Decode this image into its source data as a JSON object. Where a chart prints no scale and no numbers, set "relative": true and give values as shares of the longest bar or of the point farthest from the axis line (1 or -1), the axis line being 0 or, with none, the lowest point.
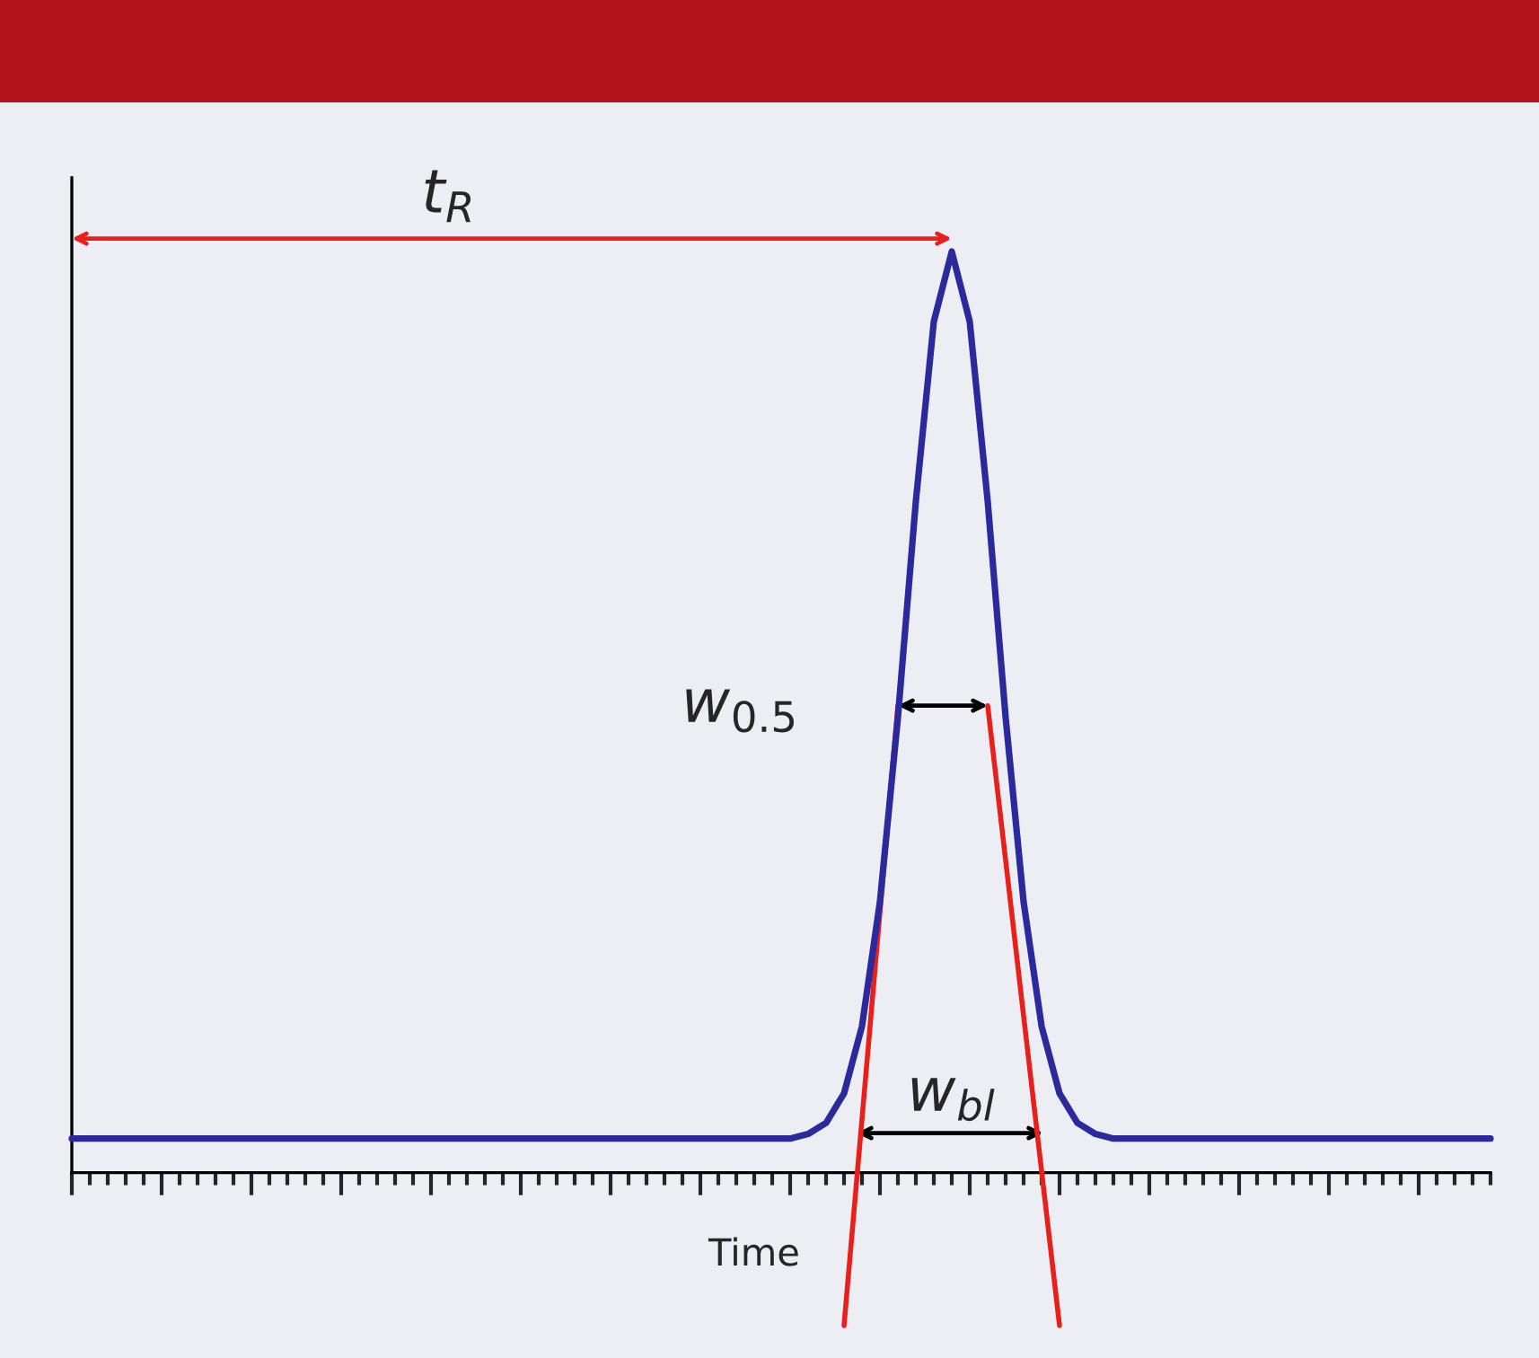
{
  "chart_data": {
    "type": "line",
    "relative": true,
    "categories": [
      null,
      null,
      null,
      null,
      null,
      null,
      null,
      null,
      null,
      null,
      null,
      null,
      null,
      null,
      null,
      null,
      null,
      null,
      null,
      null,
      null,
      null,
      null,
      null,
      null,
      null,
      null,
      null,
      null,
      null,
      null,
      null,
      null,
      null,
      null,
      null,
      null,
      null,
      null,
      null,
      null,
      null,
      null,
      null,
      null,
      null,
      null,
      null,
      null,
      null,
      null,
      null,
      null,
      null,
      null,
      null,
      null,
      null,
      null,
      null,
      null,
      null,
      null,
      null,
      null,
      null,
      null,
      null,
      null,
      null,
      null,
      null,
      null,
      null,
      null,
      null,
      null,
      null,
      null,
      null
    ],
    "series": [
      {
        "color": "#2b2a9c",
        "values": [
          0.037,
          0.037,
          0.037,
          0.037,
          0.037,
          0.037,
          0.037,
          0.037,
          0.037,
          0.037,
          0.037,
          0.037,
          0.037,
          0.037,
          0.037,
          0.037,
          0.037,
          0.037,
          0.037,
          0.037,
          0.037,
          0.037,
          0.037,
          0.037,
          0.037,
          0.037,
          0.037,
          0.037,
          0.037,
          0.037,
          0.037,
          0.037,
          0.037,
          0.037,
          0.037,
          0.037,
          0.037,
          0.037,
          0.037,
          0.037,
          0.037,
          0.042,
          0.054,
          0.086,
          0.159,
          0.294,
          0.494,
          0.729,
          0.924,
          1.0,
          0.924,
          0.729,
          0.494,
          0.294,
          0.159,
          0.086,
          0.054,
          0.042,
          0.037,
          0.037,
          0.037,
          0.037,
          0.037,
          0.037,
          0.037,
          0.037,
          0.037,
          0.037,
          0.037,
          0.037,
          0.037,
          0.037,
          0.037,
          0.037,
          0.037,
          0.037,
          0.037,
          0.037,
          0.037,
          0.037
        ]
      },
      {
        "type": "line",
        "color": "#e8201c",
        "values": [
          null,
          null,
          null,
          null,
          null,
          null,
          null,
          null,
          null,
          null,
          null,
          null,
          null,
          null,
          null,
          null,
          null,
          null,
          null,
          null,
          null,
          null,
          null,
          null,
          null,
          null,
          null,
          null,
          null,
          null,
          null,
          null,
          null,
          null,
          null,
          null,
          null,
          null,
          null,
          null,
          null,
          null,
          null,
          -0.166,
          0.058,
          0.283,
          0.507,
          null,
          null,
          null,
          null,
          null,
          null,
          null,
          null,
          null,
          null,
          null,
          null,
          null,
          null,
          null,
          null,
          null,
          null,
          null,
          null,
          null,
          null,
          null,
          null,
          null,
          null,
          null,
          null,
          null,
          null,
          null,
          null,
          null
        ]
      },
      {
        "type": "line",
        "color": "#e8201c",
        "values": [
          null,
          null,
          null,
          null,
          null,
          null,
          null,
          null,
          null,
          null,
          null,
          null,
          null,
          null,
          null,
          null,
          null,
          null,
          null,
          null,
          null,
          null,
          null,
          null,
          null,
          null,
          null,
          null,
          null,
          null,
          null,
          null,
          null,
          null,
          null,
          null,
          null,
          null,
          null,
          null,
          null,
          null,
          null,
          null,
          null,
          null,
          null,
          null,
          null,
          null,
          null,
          0.507,
          0.339,
          0.17,
          0.002,
          -0.166,
          null,
          null,
          null,
          null,
          null,
          null,
          null,
          null,
          null,
          null,
          null,
          null,
          null,
          null,
          null,
          null,
          null,
          null,
          null,
          null,
          null,
          null,
          null,
          null
        ]
      }
    ],
    "xlabel": "Time",
    "annotations": [
      "t$_{R}$",
      "w$_{0.5}$",
      "w$_{bl}$"
    ],
    "grid": false,
    "legend": false,
    "marker": "none",
    "line_style": "solid"
  }
}
